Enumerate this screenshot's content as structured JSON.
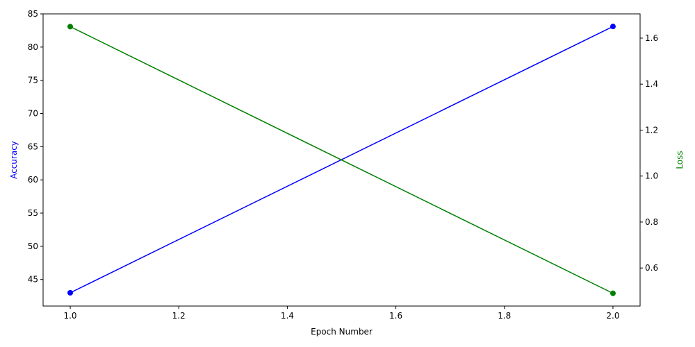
{
  "chart_data": {
    "type": "line",
    "title": "",
    "xlabel": "Epoch Number",
    "x": [
      1.0,
      2.0
    ],
    "xlim": [
      0.95,
      2.05
    ],
    "xticks": [
      "1.0",
      "1.2",
      "1.4",
      "1.6",
      "1.8",
      "2.0"
    ],
    "grid": false,
    "legend": "none",
    "left_axis": {
      "label": "Accuracy",
      "color": "#0000ff",
      "ylim": [
        41.0,
        85.0
      ],
      "yticks": [
        "45",
        "50",
        "55",
        "60",
        "65",
        "70",
        "75",
        "80",
        "85"
      ]
    },
    "right_axis": {
      "label": "Loss",
      "color": "#008000",
      "ylim": [
        0.4345,
        1.7055
      ],
      "yticks": [
        "0.6",
        "0.8",
        "1.0",
        "1.2",
        "1.4",
        "1.6"
      ]
    },
    "series": [
      {
        "axis": "left",
        "color": "#0000ff",
        "marker": "o",
        "values": [
          43.0,
          83.1
        ]
      },
      {
        "axis": "right",
        "color": "#008000",
        "marker": "o",
        "values": [
          1.65,
          0.49
        ]
      }
    ]
  }
}
